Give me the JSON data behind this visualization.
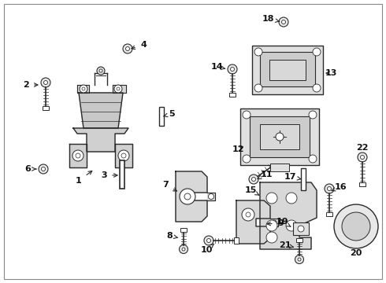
{
  "background_color": "#ffffff",
  "line_color": "#2a2a2a",
  "text_color": "#111111",
  "figsize": [
    4.9,
    3.6
  ],
  "dpi": 100
}
